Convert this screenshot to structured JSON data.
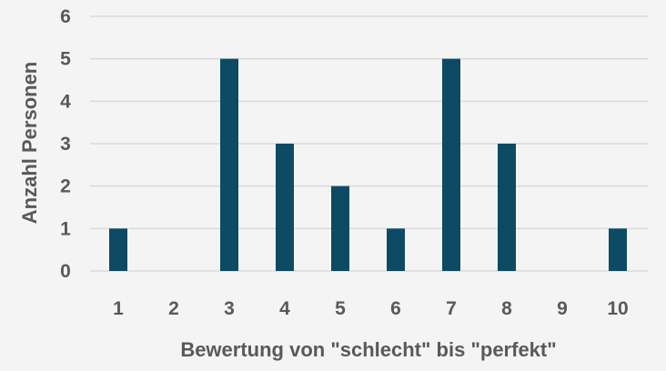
{
  "chart_data": {
    "type": "bar",
    "categories": [
      "1",
      "2",
      "3",
      "4",
      "5",
      "6",
      "7",
      "8",
      "9",
      "10"
    ],
    "values": [
      1,
      0,
      5,
      3,
      2,
      1,
      5,
      3,
      0,
      1
    ],
    "title": "",
    "xlabel": "Bewertung von \"schlecht\" bis \"perfekt\"",
    "ylabel": "Anzahl Personen",
    "ylim": [
      0,
      6
    ],
    "yticks": [
      0,
      1,
      2,
      3,
      4,
      5,
      6
    ],
    "grid": true,
    "legend": "none",
    "colors": {
      "bar": "#0d4a63",
      "grid": "#d9d9d9",
      "text": "#595959",
      "background": "#f4f4f4"
    }
  }
}
